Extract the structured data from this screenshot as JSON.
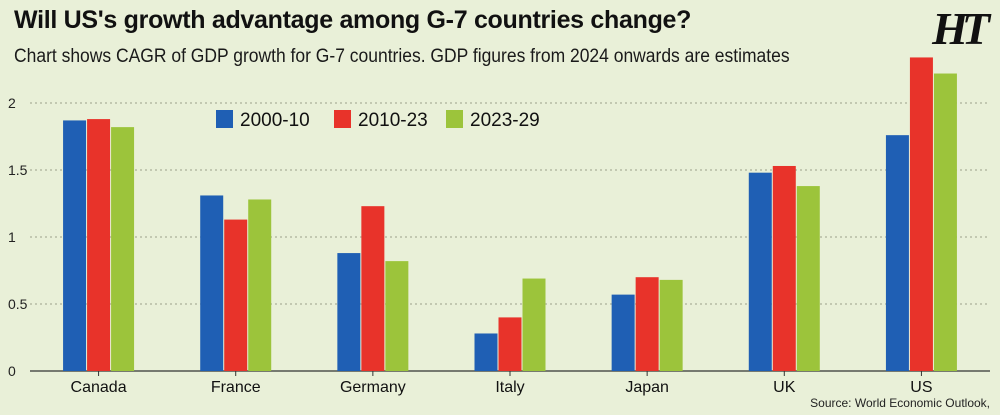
{
  "header": {
    "title": "Will US's growth advantage among G-7 countries change?",
    "subtitle": "Chart shows CAGR of GDP growth for G-7 countries. GDP figures from 2024 onwards are estimates",
    "logo": "HT"
  },
  "footer": {
    "source": "Source: World Economic Outlook,"
  },
  "colors": {
    "background": "#e9f0d8",
    "series": [
      "#1f5fb4",
      "#e8332a",
      "#9cc43b"
    ]
  },
  "chart_data": {
    "type": "bar",
    "title": "Will US's growth advantage among G-7 countries change?",
    "subtitle": "Chart shows CAGR of GDP growth for G-7 countries. GDP figures from 2024 onwards are estimates",
    "xlabel": "",
    "ylabel": "",
    "categories": [
      "Canada",
      "France",
      "Germany",
      "Italy",
      "Japan",
      "UK",
      "US"
    ],
    "series": [
      {
        "name": "2000-10",
        "values": [
          1.87,
          1.31,
          0.88,
          0.28,
          0.57,
          1.48,
          1.76
        ]
      },
      {
        "name": "2010-23",
        "values": [
          1.88,
          1.13,
          1.23,
          0.4,
          0.7,
          1.53,
          2.34
        ]
      },
      {
        "name": "2023-29",
        "values": [
          1.82,
          1.28,
          0.82,
          0.69,
          0.68,
          1.38,
          2.22
        ]
      }
    ],
    "ylim": [
      0,
      2.4
    ],
    "yticks": [
      0,
      0.5,
      1,
      1.5,
      2
    ],
    "ytick_labels": [
      "0",
      "0.5",
      "1",
      "1.5",
      "2"
    ],
    "grid": "horizontal",
    "legend_position": "top-left"
  }
}
